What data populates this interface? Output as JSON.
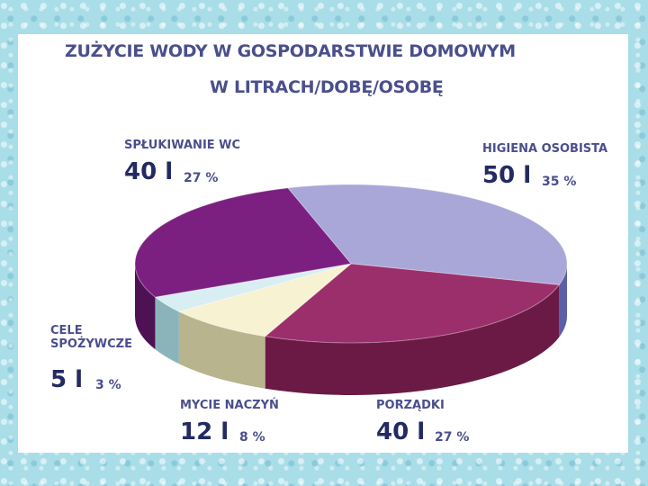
{
  "title_line1": "ZUŻYCIE WODY W GOSPODARSTWIE DOMOWYM",
  "title_line2": "W LITRACH/DOBĘ/OSOBĘ",
  "chart_data": {
    "type": "pie",
    "title": "ZUŻYCIE WODY W GOSPODARSTWIE DOMOWYM W LITRACH/DOBĘ/OSOBĘ",
    "slices": [
      {
        "label": "HIGIENA OSOBISTA",
        "value_text": "50 l",
        "value": 50,
        "percent_text": "35 %",
        "percent": 35,
        "color": "#a9a7d8",
        "side_color": "#5a5fa6"
      },
      {
        "label": "PORZĄDKI",
        "value_text": "40 l",
        "value": 40,
        "percent_text": "27 %",
        "percent": 27,
        "color": "#9b2f6c",
        "side_color": "#6b1a45"
      },
      {
        "label": "MYCIE NACZYŃ",
        "value_text": "12 l",
        "value": 12,
        "percent_text": "8 %",
        "percent": 8,
        "color": "#f7f2d2",
        "side_color": "#b8b48e"
      },
      {
        "label": "CELE\nSPOŻYWCZE",
        "value_text": "5 l",
        "value": 5,
        "percent_text": "3 %",
        "percent": 3,
        "color": "#d8eef3",
        "side_color": "#8bb4ba"
      },
      {
        "label": "SPŁUKIWANIE WC",
        "value_text": "40 l",
        "value": 40,
        "percent_text": "27 %",
        "percent": 27,
        "color": "#7b2080",
        "side_color": "#4e1254"
      }
    ]
  }
}
